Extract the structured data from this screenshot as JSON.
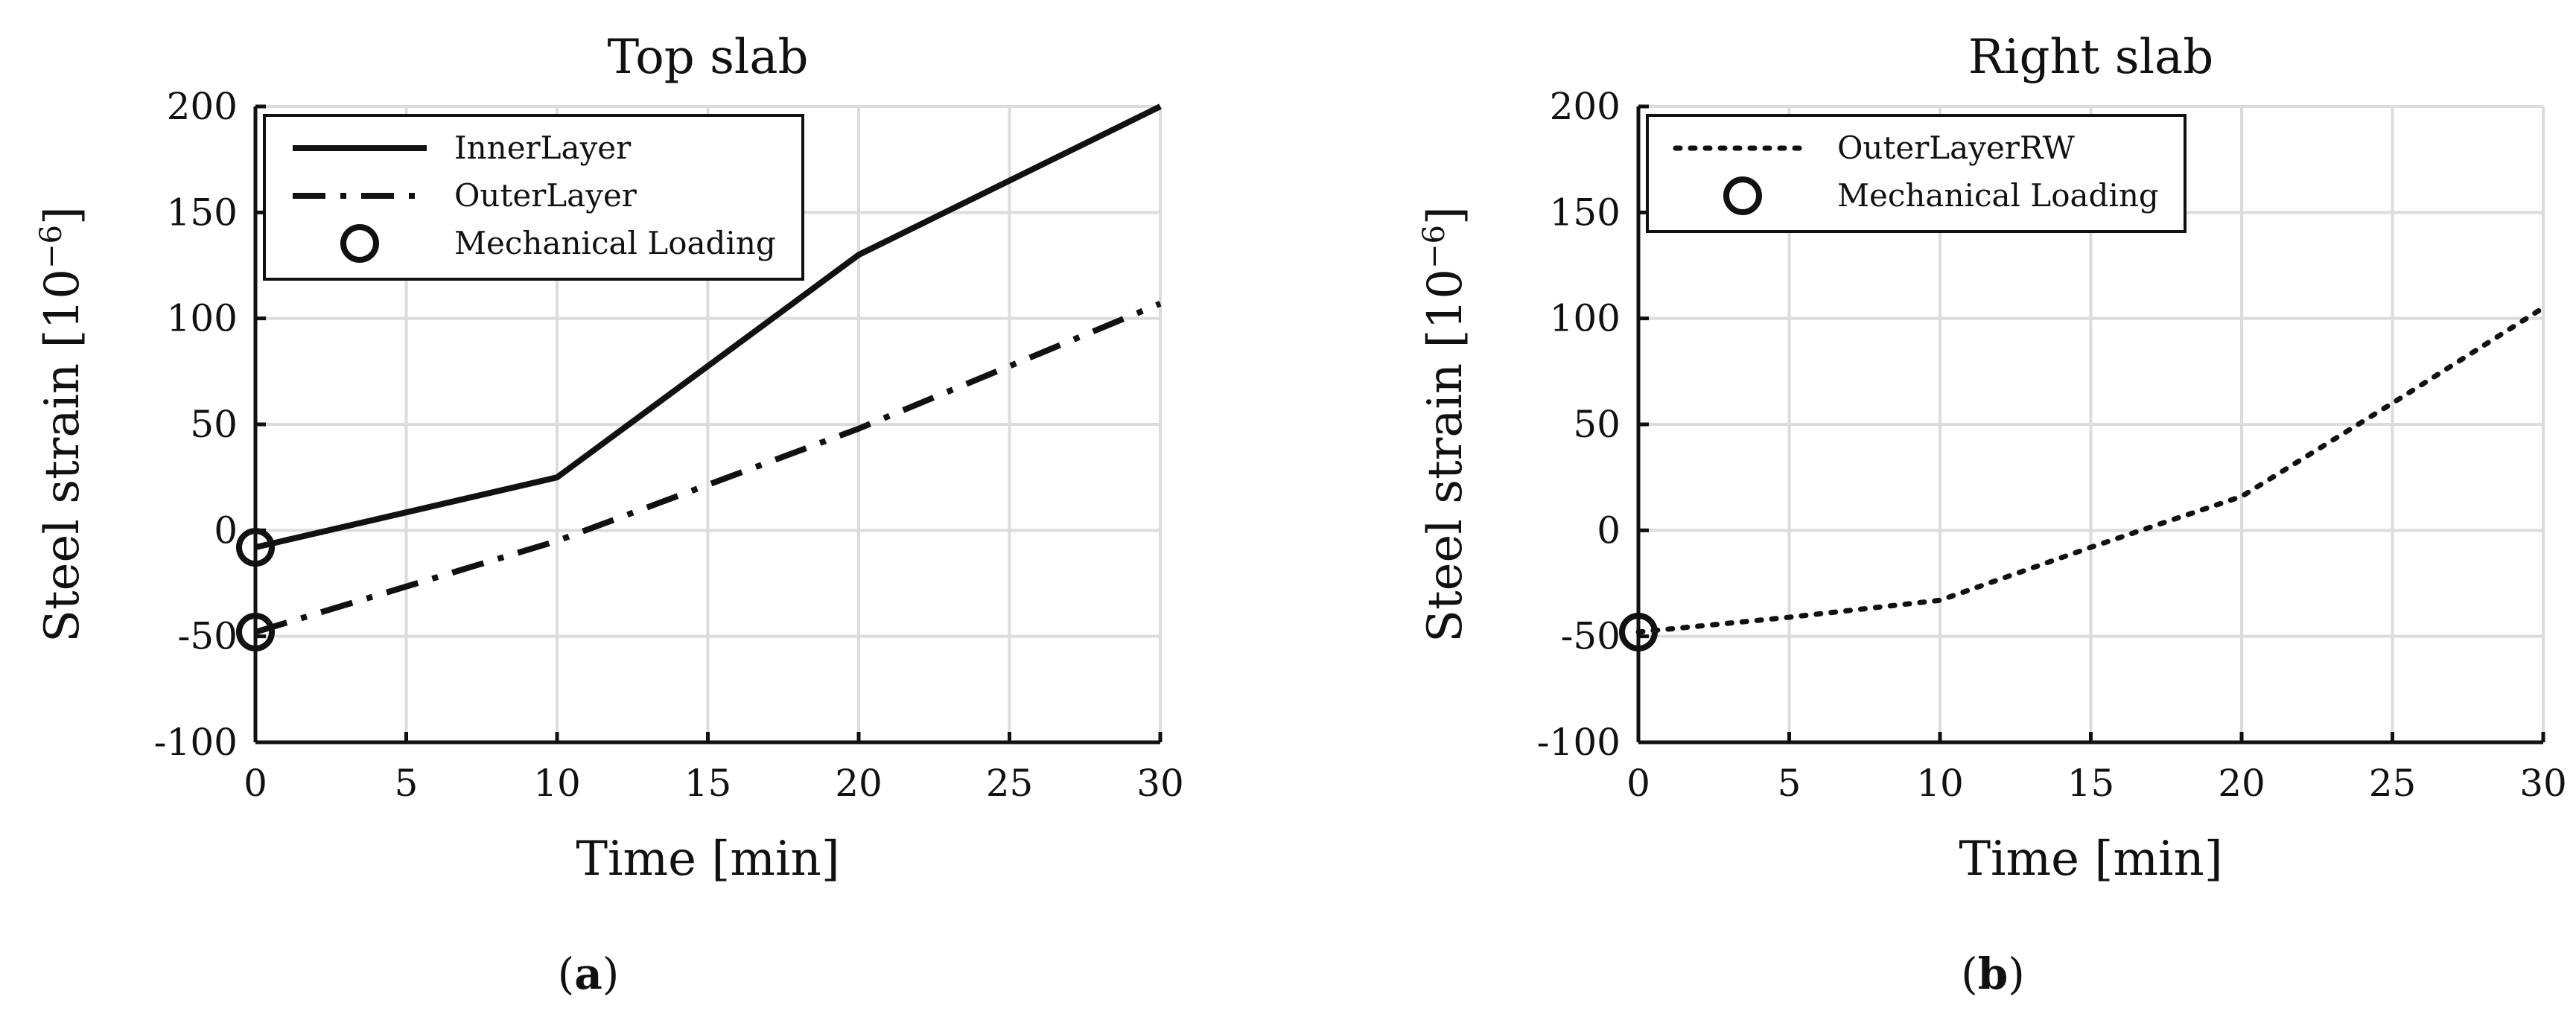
{
  "chart_data": [
    {
      "type": "line",
      "title": "Top slab",
      "xlabel": "Time [min]",
      "ylabel": "Steel strain [10",
      "ylabel_sup": "−6",
      "ylabel_end": "]",
      "xlim": [
        0,
        30
      ],
      "ylim": [
        -100,
        200
      ],
      "xticks": [
        0,
        5,
        10,
        15,
        20,
        25,
        30
      ],
      "xtick_labels": [
        "0",
        "5",
        "10",
        "15",
        "20",
        "25",
        "30"
      ],
      "yticks": [
        -100,
        -50,
        0,
        50,
        100,
        150,
        200
      ],
      "ytick_labels": [
        "-100",
        "-50",
        "0",
        "50",
        "100",
        "150",
        "200"
      ],
      "grid": true,
      "legend_position": "top-left",
      "series": [
        {
          "name": "InnerLayer",
          "style": "solid",
          "color": "#111111",
          "x": [
            0,
            10,
            20,
            30
          ],
          "y": [
            -8,
            25,
            130,
            200
          ]
        },
        {
          "name": "OuterLayer",
          "style": "dash-dot",
          "color": "#111111",
          "x": [
            0,
            10,
            20,
            30
          ],
          "y": [
            -48,
            -5,
            48,
            107
          ]
        }
      ],
      "markers": {
        "name": "Mechanical Loading",
        "shape": "circle",
        "points": [
          {
            "x": 0,
            "y": -8
          },
          {
            "x": 0,
            "y": -48
          }
        ]
      },
      "panel_label": "a"
    },
    {
      "type": "line",
      "title": "Right slab",
      "xlabel": "Time [min]",
      "ylabel": "Steel strain [10",
      "ylabel_sup": "−6",
      "ylabel_end": "]",
      "xlim": [
        0,
        30
      ],
      "ylim": [
        -100,
        200
      ],
      "xticks": [
        0,
        5,
        10,
        15,
        20,
        25,
        30
      ],
      "xtick_labels": [
        "0",
        "5",
        "10",
        "15",
        "20",
        "25",
        "30"
      ],
      "yticks": [
        -100,
        -50,
        0,
        50,
        100,
        150,
        200
      ],
      "ytick_labels": [
        "-100",
        "-50",
        "0",
        "50",
        "100",
        "150",
        "200"
      ],
      "grid": true,
      "legend_position": "top-left",
      "series": [
        {
          "name": "OuterLayerRW",
          "style": "dotted",
          "color": "#111111",
          "x": [
            0,
            5,
            10,
            15,
            20,
            25,
            30
          ],
          "y": [
            -48,
            -41,
            -33,
            -8,
            16,
            60,
            105
          ]
        }
      ],
      "markers": {
        "name": "Mechanical Loading",
        "shape": "circle",
        "points": [
          {
            "x": 0,
            "y": -48
          }
        ]
      },
      "panel_label": "b"
    }
  ]
}
